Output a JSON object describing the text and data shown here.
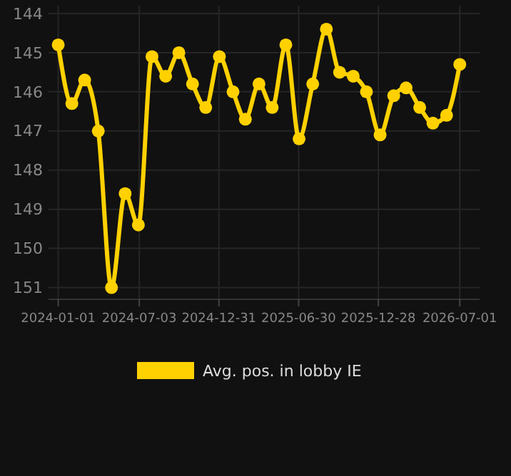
{
  "chart_data": {
    "type": "line",
    "x": [
      "2024-01-01",
      "2024-02-01",
      "2024-03-01",
      "2024-04-01",
      "2024-05-01",
      "2024-06-01",
      "2024-07-01",
      "2024-08-01",
      "2024-09-01",
      "2024-10-01",
      "2024-11-01",
      "2024-12-01",
      "2025-01-01",
      "2025-02-01",
      "2025-03-01",
      "2025-04-01",
      "2025-05-01",
      "2025-06-01",
      "2025-07-01",
      "2025-08-01",
      "2025-09-01",
      "2025-10-01",
      "2025-11-01",
      "2025-12-01",
      "2026-01-01",
      "2026-02-01",
      "2026-03-01",
      "2026-04-01",
      "2026-05-01",
      "2026-06-01",
      "2026-07-01"
    ],
    "series": [
      {
        "name": "Avg. pos. in lobby IE",
        "color": "#ffd100",
        "values": [
          144.8,
          146.3,
          145.7,
          147.0,
          151.0,
          148.6,
          149.4,
          145.1,
          145.6,
          145.0,
          145.8,
          146.4,
          145.1,
          146.0,
          146.7,
          145.8,
          146.4,
          144.8,
          147.2,
          145.8,
          144.4,
          145.5,
          145.6,
          146.0,
          147.1,
          146.1,
          145.9,
          146.4,
          146.8,
          146.6,
          145.3
        ]
      }
    ],
    "ylim": [
      151.3,
      143.8
    ],
    "yticks": [
      144,
      145,
      146,
      147,
      148,
      149,
      150,
      151
    ],
    "xlim": [
      "2023-12-10",
      "2026-08-15"
    ],
    "xticks": [
      {
        "value": "2024-01-01",
        "label": "2024-01-01"
      },
      {
        "value": "2024-07-03",
        "label": "2024-07-03"
      },
      {
        "value": "2024-12-31",
        "label": "2024-12-31"
      },
      {
        "value": "2025-06-30",
        "label": "2025-06-30"
      },
      {
        "value": "2025-12-28",
        "label": "2025-12-28"
      },
      {
        "value": "2026-07-01",
        "label": "2026-07-01"
      }
    ],
    "grid": true,
    "legend": "bottom",
    "marker": "circle",
    "line_style": "solid"
  }
}
